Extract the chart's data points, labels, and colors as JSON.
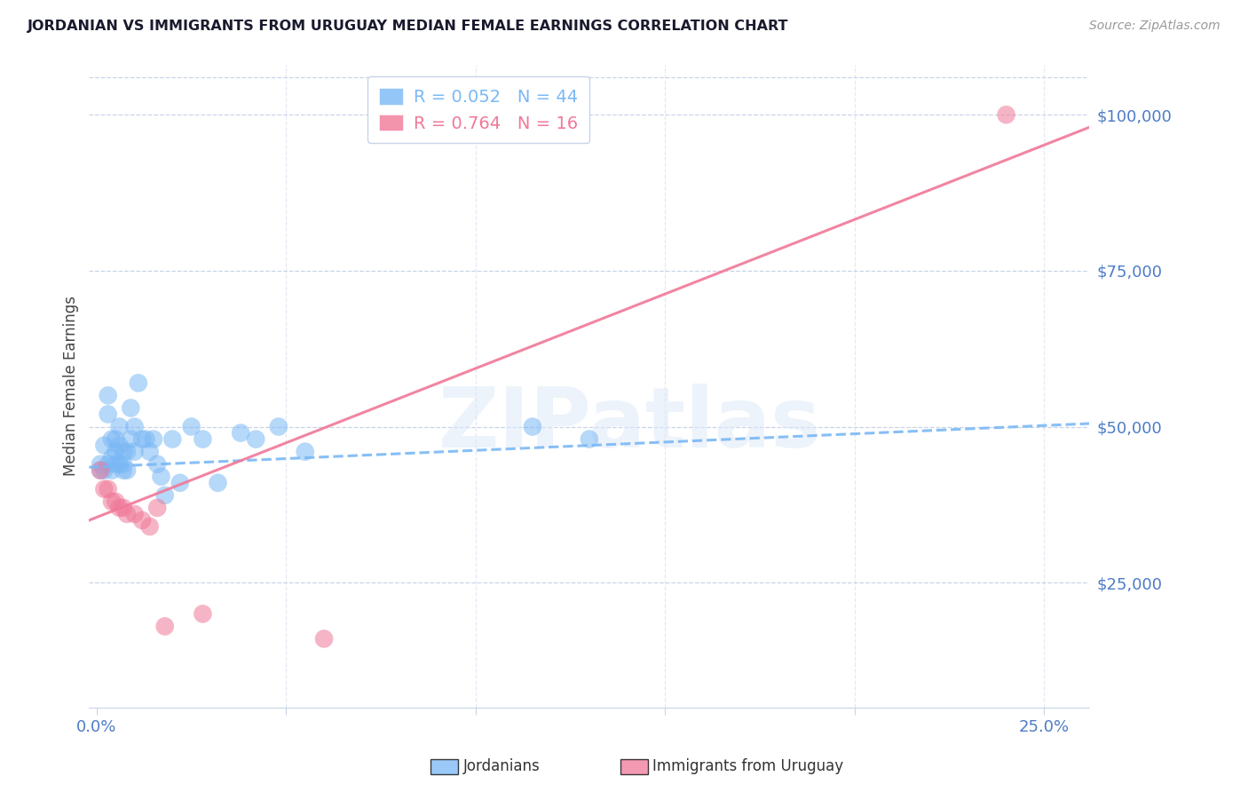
{
  "title": "JORDANIAN VS IMMIGRANTS FROM URUGUAY MEDIAN FEMALE EARNINGS CORRELATION CHART",
  "source": "Source: ZipAtlas.com",
  "ylabel_label": "Median Female Earnings",
  "y_tick_values": [
    25000,
    50000,
    75000,
    100000
  ],
  "y_min": 5000,
  "y_max": 108000,
  "x_min": -0.002,
  "x_max": 0.262,
  "legend_entries": [
    {
      "label": "Jordanians",
      "color": "#7ab8f5",
      "R": "0.052",
      "N": "44"
    },
    {
      "label": "Immigrants from Uruguay",
      "color": "#f07898",
      "R": "0.764",
      "N": "16"
    }
  ],
  "blue_color": "#7ab8f5",
  "pink_color": "#f07898",
  "background_color": "#ffffff",
  "grid_color": "#c8d4e8",
  "title_color": "#1a1a2e",
  "axis_label_color": "#444444",
  "tick_label_color": "#4d7cc7",
  "watermark": "ZIPatlas",
  "jordanians_x": [
    0.001,
    0.001,
    0.002,
    0.002,
    0.003,
    0.003,
    0.003,
    0.004,
    0.004,
    0.004,
    0.005,
    0.005,
    0.005,
    0.006,
    0.006,
    0.006,
    0.007,
    0.007,
    0.007,
    0.008,
    0.008,
    0.009,
    0.009,
    0.01,
    0.01,
    0.011,
    0.012,
    0.013,
    0.014,
    0.015,
    0.016,
    0.017,
    0.018,
    0.02,
    0.022,
    0.025,
    0.028,
    0.032,
    0.038,
    0.042,
    0.048,
    0.055,
    0.115,
    0.13
  ],
  "jordanians_y": [
    44000,
    43000,
    47000,
    43000,
    55000,
    52000,
    44000,
    48000,
    45000,
    43000,
    48000,
    46000,
    44000,
    50000,
    47000,
    44000,
    46000,
    44000,
    43000,
    46000,
    43000,
    53000,
    48000,
    50000,
    46000,
    57000,
    48000,
    48000,
    46000,
    48000,
    44000,
    42000,
    39000,
    48000,
    41000,
    50000,
    48000,
    41000,
    49000,
    48000,
    50000,
    46000,
    50000,
    48000
  ],
  "uruguay_x": [
    0.001,
    0.002,
    0.003,
    0.004,
    0.005,
    0.006,
    0.007,
    0.008,
    0.01,
    0.012,
    0.014,
    0.016,
    0.018,
    0.028,
    0.06,
    0.24
  ],
  "uruguay_y": [
    43000,
    40000,
    40000,
    38000,
    38000,
    37000,
    37000,
    36000,
    36000,
    35000,
    34000,
    37000,
    18000,
    20000,
    16000,
    100000
  ],
  "blue_trend_x": [
    -0.002,
    0.262
  ],
  "blue_trend_y": [
    43500,
    50500
  ],
  "pink_trend_x": [
    -0.002,
    0.262
  ],
  "pink_trend_y": [
    35000,
    98000
  ],
  "bottom_legend_blue_label": "Jordanians",
  "bottom_legend_pink_label": "Immigrants from Uruguay"
}
